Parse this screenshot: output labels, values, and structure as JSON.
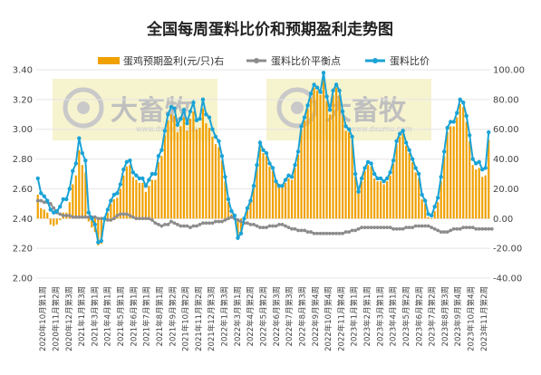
{
  "chart_data": {
    "type": "bar+line",
    "title": "全国每周蛋料比价和预期盈利走势图",
    "legend": [
      {
        "name": "蛋鸡预期盈利(元/只)右",
        "color": "#f0a000",
        "kind": "bar"
      },
      {
        "name": "蛋料比价平衡点",
        "color": "#8c8c8c",
        "kind": "line"
      },
      {
        "name": "蛋料比价",
        "color": "#1aa3d6",
        "kind": "line"
      }
    ],
    "left_axis": {
      "min": 2.0,
      "max": 3.4,
      "ticks": [
        "2.00",
        "2.20",
        "2.40",
        "2.60",
        "2.80",
        "3.00",
        "3.20",
        "3.40"
      ]
    },
    "right_axis": {
      "min": -40,
      "max": 100,
      "ticks": [
        "-40.00",
        "-20.00",
        "0.00",
        "20.00",
        "40.00",
        "60.00",
        "80.00",
        "100.00"
      ]
    },
    "x_labels": [
      "2020年10月第1周",
      "2020年11月第2周",
      "2020年12月第3周",
      "2021年1月第3周",
      "2021年3月第1周",
      "2021年4月第1周",
      "2021年5月第1周",
      "2021年6月第1周",
      "2021年7月第1周",
      "2021年8月第1周",
      "2021年9月第2周",
      "2021年10月第2周",
      "2021年11月第2周",
      "2021年12月第3周",
      "2022年1月第3周",
      "2022年3月第1周",
      "2022年4月第2周",
      "2022年5月第2周",
      "2022年6月第3周",
      "2022年7月第3周",
      "2022年8月第3周",
      "2022年9月第4周",
      "2022年10月第4周",
      "2022年11月第4周",
      "2023年1月第1周",
      "2023年2月第1周",
      "2023年3月第1周",
      "2023年4月第1周",
      "2023年5月第2周",
      "2023年6月第2周",
      "2023年7月第2周",
      "2023年8月第3周",
      "2023年9月第4周",
      "2023年10月第4周",
      "2023年11月第2周"
    ],
    "series": [
      {
        "name": "蛋料比价",
        "axis": "left",
        "values": [
          2.67,
          2.57,
          2.55,
          2.52,
          2.46,
          2.44,
          2.45,
          2.48,
          2.53,
          2.53,
          2.6,
          2.72,
          2.77,
          2.94,
          2.84,
          2.79,
          2.44,
          2.4,
          2.36,
          2.24,
          2.25,
          2.4,
          2.46,
          2.52,
          2.56,
          2.57,
          2.63,
          2.73,
          2.78,
          2.79,
          2.71,
          2.69,
          2.67,
          2.67,
          2.62,
          2.66,
          2.7,
          2.7,
          2.82,
          2.86,
          2.99,
          3.1,
          3.15,
          3.14,
          3.03,
          3.07,
          3.13,
          3.04,
          3.12,
          3.18,
          3.06,
          3.07,
          3.2,
          3.1,
          3.08,
          3.0,
          2.95,
          2.92,
          2.82,
          2.68,
          2.53,
          2.45,
          2.42,
          2.27,
          2.3,
          2.4,
          2.47,
          2.52,
          2.62,
          2.76,
          2.91,
          2.86,
          2.84,
          2.77,
          2.74,
          2.65,
          2.62,
          2.62,
          2.66,
          2.69,
          2.68,
          2.76,
          2.85,
          3.02,
          3.08,
          3.16,
          3.24,
          3.3,
          3.28,
          3.25,
          3.38,
          3.22,
          3.13,
          3.26,
          3.3,
          3.26,
          3.12,
          3.02,
          3.0,
          2.95,
          2.7,
          2.58,
          2.67,
          2.74,
          2.78,
          2.77,
          2.7,
          2.67,
          2.67,
          2.65,
          2.67,
          2.71,
          2.79,
          2.92,
          2.97,
          2.99,
          2.91,
          2.86,
          2.8,
          2.74,
          2.7,
          2.56,
          2.52,
          2.43,
          2.42,
          2.48,
          2.54,
          2.68,
          2.85,
          3.01,
          3.05,
          3.05,
          3.11,
          3.2,
          3.18,
          3.09,
          2.96,
          2.8,
          2.77,
          2.78,
          2.73,
          2.74,
          2.98
        ]
      },
      {
        "name": "蛋料比价平衡点",
        "axis": "left",
        "values": [
          2.52,
          2.52,
          2.51,
          2.51,
          2.5,
          2.47,
          2.44,
          2.43,
          2.42,
          2.42,
          2.42,
          2.41,
          2.41,
          2.41,
          2.41,
          2.41,
          2.41,
          2.41,
          2.41,
          2.4,
          2.4,
          2.4,
          2.39,
          2.39,
          2.4,
          2.42,
          2.43,
          2.43,
          2.43,
          2.42,
          2.41,
          2.4,
          2.4,
          2.4,
          2.4,
          2.4,
          2.39,
          2.37,
          2.36,
          2.35,
          2.36,
          2.36,
          2.38,
          2.37,
          2.36,
          2.35,
          2.35,
          2.35,
          2.34,
          2.35,
          2.35,
          2.36,
          2.37,
          2.37,
          2.37,
          2.37,
          2.38,
          2.38,
          2.38,
          2.39,
          2.4,
          2.41,
          2.4,
          2.39,
          2.38,
          2.37,
          2.37,
          2.36,
          2.36,
          2.35,
          2.34,
          2.34,
          2.34,
          2.35,
          2.35,
          2.35,
          2.36,
          2.36,
          2.35,
          2.34,
          2.33,
          2.33,
          2.32,
          2.32,
          2.32,
          2.31,
          2.31,
          2.3,
          2.3,
          2.3,
          2.3,
          2.3,
          2.3,
          2.3,
          2.3,
          2.3,
          2.3,
          2.31,
          2.31,
          2.32,
          2.32,
          2.33,
          2.34,
          2.34,
          2.34,
          2.34,
          2.34,
          2.34,
          2.34,
          2.34,
          2.34,
          2.34,
          2.33,
          2.33,
          2.33,
          2.33,
          2.34,
          2.34,
          2.34,
          2.35,
          2.35,
          2.35,
          2.35,
          2.35,
          2.34,
          2.33,
          2.32,
          2.31,
          2.31,
          2.31,
          2.32,
          2.33,
          2.33,
          2.33,
          2.34,
          2.34,
          2.34,
          2.34,
          2.33,
          2.33,
          2.33,
          2.33,
          2.33,
          2.33
        ]
      },
      {
        "name": "蛋鸡预期盈利(元/只)右",
        "axis": "right",
        "values": [
          16,
          7,
          6,
          4,
          -4,
          -5,
          -4,
          -1,
          4,
          4,
          11,
          23,
          29,
          46,
          36,
          31,
          -2,
          -6,
          -9,
          -18,
          -17,
          -2,
          4,
          10,
          13,
          14,
          20,
          29,
          35,
          36,
          28,
          26,
          24,
          24,
          18,
          22,
          26,
          26,
          38,
          42,
          56,
          66,
          70,
          69,
          58,
          62,
          68,
          59,
          67,
          72,
          60,
          61,
          74,
          64,
          61,
          55,
          50,
          48,
          39,
          25,
          11,
          3,
          0,
          -13,
          -10,
          0,
          7,
          12,
          22,
          36,
          49,
          44,
          42,
          35,
          32,
          24,
          21,
          21,
          24,
          27,
          26,
          34,
          43,
          60,
          66,
          74,
          81,
          88,
          86,
          83,
          95,
          79,
          70,
          83,
          88,
          83,
          69,
          59,
          58,
          53,
          28,
          17,
          25,
          32,
          36,
          35,
          27,
          25,
          25,
          23,
          25,
          29,
          37,
          50,
          55,
          57,
          49,
          44,
          38,
          31,
          27,
          13,
          10,
          1,
          0,
          5,
          11,
          25,
          42,
          58,
          62,
          62,
          68,
          77,
          75,
          65,
          52,
          36,
          33,
          34,
          28,
          29,
          53
        ]
      }
    ]
  },
  "watermarks": [
    {
      "brand": "大畜牧",
      "site": "www.dxumu.com"
    },
    {
      "brand": "大畜牧",
      "site": "www.dxumu.com"
    }
  ]
}
